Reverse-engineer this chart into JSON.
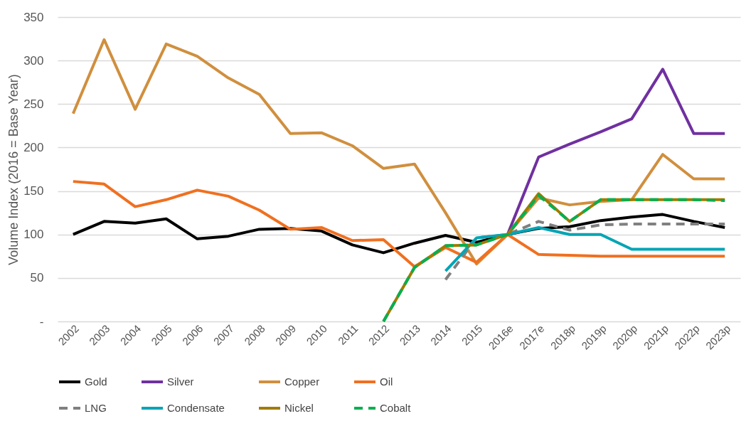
{
  "chart_data": {
    "type": "line",
    "ylabel": "Volume Index (2016 = Base Year)",
    "categories": [
      "2002",
      "2003",
      "2004",
      "2005",
      "2006",
      "2007",
      "2008",
      "2009",
      "2010",
      "2011",
      "2012",
      "2013",
      "2014",
      "2015",
      "2016e",
      "2017e",
      "2018p",
      "2019p",
      "2020p",
      "2021p",
      "2022p",
      "2023p"
    ],
    "series": [
      {
        "name": "Gold",
        "color": "#000000",
        "line_style": "solid",
        "values": [
          100,
          115,
          113,
          118,
          95,
          98,
          106,
          107,
          104,
          88,
          79,
          90,
          99,
          91,
          100,
          107,
          109,
          116,
          120,
          123,
          115,
          108
        ]
      },
      {
        "name": "Silver",
        "color": "#7030a0",
        "line_style": "solid",
        "values": [
          null,
          null,
          null,
          null,
          null,
          null,
          null,
          null,
          null,
          null,
          null,
          null,
          null,
          null,
          100,
          189,
          204,
          218,
          233,
          290,
          216,
          216
        ]
      },
      {
        "name": "Copper",
        "color": "#d08f3e",
        "line_style": "solid",
        "values": [
          239,
          324,
          244,
          319,
          305,
          280,
          261,
          216,
          217,
          202,
          176,
          181,
          125,
          66,
          100,
          142,
          134,
          138,
          140,
          192,
          164,
          164
        ]
      },
      {
        "name": "Oil",
        "color": "#f07020",
        "line_style": "solid",
        "values": [
          161,
          158,
          132,
          140,
          151,
          144,
          128,
          106,
          108,
          93,
          94,
          63,
          85,
          68,
          100,
          77,
          76,
          75,
          75,
          75,
          75,
          75
        ]
      },
      {
        "name": "LNG",
        "color": "#808080",
        "line_style": "dashed",
        "values": [
          null,
          null,
          null,
          null,
          null,
          null,
          null,
          null,
          null,
          null,
          null,
          null,
          48,
          96,
          100,
          115,
          105,
          111,
          112,
          112,
          112,
          112
        ]
      },
      {
        "name": "Condensate",
        "color": "#00a5b5",
        "line_style": "solid",
        "values": [
          null,
          null,
          null,
          null,
          null,
          null,
          null,
          null,
          null,
          null,
          null,
          null,
          58,
          96,
          100,
          108,
          100,
          100,
          83,
          83,
          83,
          83
        ]
      },
      {
        "name": "Nickel",
        "color": "#a07c00",
        "line_style": "solid",
        "values": [
          null,
          null,
          null,
          null,
          null,
          null,
          null,
          null,
          null,
          null,
          0,
          62,
          87,
          88,
          100,
          147,
          115,
          140,
          140,
          140,
          140,
          140
        ]
      },
      {
        "name": "Cobalt",
        "color": "#00b050",
        "line_style": "dashed",
        "values": [
          null,
          null,
          null,
          null,
          null,
          null,
          null,
          null,
          null,
          null,
          0,
          62,
          87,
          88,
          100,
          145,
          115,
          140,
          140,
          140,
          140,
          139
        ]
      }
    ],
    "ylim": [
      0,
      350
    ],
    "yticks": [
      {
        "value": 0,
        "label": "-"
      },
      50,
      100,
      150,
      200,
      250,
      300,
      350
    ],
    "grid": "y",
    "legend": "bottom"
  }
}
